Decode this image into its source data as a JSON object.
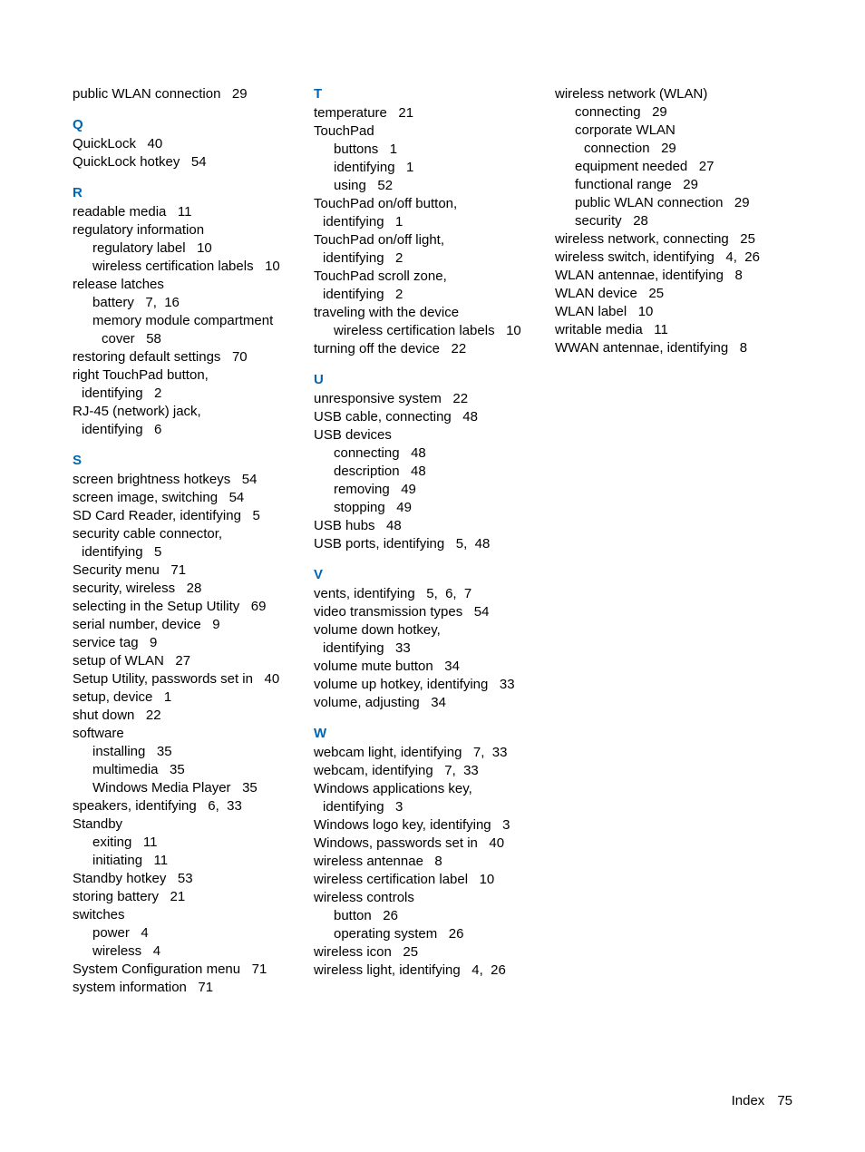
{
  "accent_color": "#0066b3",
  "text_color": "#000000",
  "font_size_pt": 11,
  "col1": {
    "pre": [
      {
        "t": "entry",
        "text": "public WLAN connection",
        "pg": "29"
      }
    ],
    "Q": [
      {
        "t": "entry",
        "text": "QuickLock",
        "pg": "40"
      },
      {
        "t": "entry",
        "text": "QuickLock hotkey",
        "pg": "54"
      }
    ],
    "R": [
      {
        "t": "entry",
        "text": "readable media",
        "pg": "11"
      },
      {
        "t": "entry",
        "text": "regulatory information",
        "pg": ""
      },
      {
        "t": "sub",
        "text": "regulatory label",
        "pg": "10"
      },
      {
        "t": "sub",
        "text": "wireless certification labels",
        "pg": "10"
      },
      {
        "t": "entry",
        "text": "release latches",
        "pg": ""
      },
      {
        "t": "sub",
        "text": "battery",
        "pg": "7,  16"
      },
      {
        "t": "sub",
        "text": "memory module compartment",
        "pg": ""
      },
      {
        "t": "sub2",
        "text": "cover",
        "pg": "58"
      },
      {
        "t": "entry",
        "text": "restoring default settings",
        "pg": "70"
      },
      {
        "t": "entry",
        "text": "right TouchPad button,",
        "pg": ""
      },
      {
        "t": "cont",
        "text": "identifying",
        "pg": "2"
      },
      {
        "t": "entry",
        "text": "RJ-45 (network) jack,",
        "pg": ""
      },
      {
        "t": "cont",
        "text": "identifying",
        "pg": "6"
      }
    ],
    "S": [
      {
        "t": "entry",
        "text": "screen brightness hotkeys",
        "pg": "54"
      },
      {
        "t": "entry",
        "text": "screen image, switching",
        "pg": "54"
      },
      {
        "t": "entry",
        "text": "SD Card Reader, identifying",
        "pg": "5"
      },
      {
        "t": "entry",
        "text": "security cable connector,",
        "pg": ""
      },
      {
        "t": "cont",
        "text": "identifying",
        "pg": "5"
      },
      {
        "t": "entry",
        "text": "Security menu",
        "pg": "71"
      },
      {
        "t": "entry",
        "text": "security, wireless",
        "pg": "28"
      },
      {
        "t": "entry",
        "text": "selecting in the Setup Utility",
        "pg": "69"
      },
      {
        "t": "entry",
        "text": "serial number, device",
        "pg": "9"
      },
      {
        "t": "entry",
        "text": "service tag",
        "pg": "9"
      },
      {
        "t": "entry",
        "text": "setup of WLAN",
        "pg": "27"
      },
      {
        "t": "entry",
        "text": "Setup Utility, passwords set in",
        "pg": "40"
      },
      {
        "t": "entry",
        "text": "setup, device",
        "pg": "1"
      },
      {
        "t": "entry",
        "text": "shut down",
        "pg": "22"
      },
      {
        "t": "entry",
        "text": "software",
        "pg": ""
      },
      {
        "t": "sub",
        "text": "installing",
        "pg": "35"
      },
      {
        "t": "sub",
        "text": "multimedia",
        "pg": "35"
      },
      {
        "t": "sub",
        "text": "Windows Media Player",
        "pg": "35"
      },
      {
        "t": "entry",
        "text": "speakers, identifying",
        "pg": "6,  33"
      },
      {
        "t": "entry",
        "text": "Standby",
        "pg": ""
      },
      {
        "t": "sub",
        "text": "exiting",
        "pg": "11"
      },
      {
        "t": "sub",
        "text": "initiating",
        "pg": "11"
      },
      {
        "t": "entry",
        "text": "Standby hotkey",
        "pg": "53"
      },
      {
        "t": "entry",
        "text": "storing battery",
        "pg": "21"
      },
      {
        "t": "entry",
        "text": "switches",
        "pg": ""
      },
      {
        "t": "sub",
        "text": "power",
        "pg": "4"
      },
      {
        "t": "sub",
        "text": "wireless",
        "pg": "4"
      },
      {
        "t": "entry",
        "text": "System Configuration menu",
        "pg": "71"
      },
      {
        "t": "entry",
        "text": "system information",
        "pg": "71"
      }
    ]
  },
  "col2": {
    "T": [
      {
        "t": "entry",
        "text": "temperature",
        "pg": "21"
      },
      {
        "t": "entry",
        "text": "TouchPad",
        "pg": ""
      },
      {
        "t": "sub",
        "text": "buttons",
        "pg": "1"
      },
      {
        "t": "sub",
        "text": "identifying",
        "pg": "1"
      },
      {
        "t": "sub",
        "text": "using",
        "pg": "52"
      },
      {
        "t": "entry",
        "text": "TouchPad on/off button,",
        "pg": ""
      },
      {
        "t": "cont",
        "text": "identifying",
        "pg": "1"
      },
      {
        "t": "entry",
        "text": "TouchPad on/off light,",
        "pg": ""
      },
      {
        "t": "cont",
        "text": "identifying",
        "pg": "2"
      },
      {
        "t": "entry",
        "text": "TouchPad scroll zone,",
        "pg": ""
      },
      {
        "t": "cont",
        "text": "identifying",
        "pg": "2"
      },
      {
        "t": "entry",
        "text": "traveling with the device",
        "pg": ""
      },
      {
        "t": "sub",
        "text": "wireless certification labels",
        "pg": "10"
      },
      {
        "t": "entry",
        "text": "turning off the device",
        "pg": "22"
      }
    ],
    "U": [
      {
        "t": "entry",
        "text": "unresponsive system",
        "pg": "22"
      },
      {
        "t": "entry",
        "text": "USB cable, connecting",
        "pg": "48"
      },
      {
        "t": "entry",
        "text": "USB devices",
        "pg": ""
      },
      {
        "t": "sub",
        "text": "connecting",
        "pg": "48"
      },
      {
        "t": "sub",
        "text": "description",
        "pg": "48"
      },
      {
        "t": "sub",
        "text": "removing",
        "pg": "49"
      },
      {
        "t": "sub",
        "text": "stopping",
        "pg": "49"
      },
      {
        "t": "entry",
        "text": "USB hubs",
        "pg": "48"
      },
      {
        "t": "entry",
        "text": "USB ports, identifying",
        "pg": "5,  48"
      }
    ],
    "V": [
      {
        "t": "entry",
        "text": "vents, identifying",
        "pg": "5,  6,  7"
      },
      {
        "t": "entry",
        "text": "video transmission types",
        "pg": "54"
      },
      {
        "t": "entry",
        "text": "volume down hotkey,",
        "pg": ""
      },
      {
        "t": "cont",
        "text": "identifying",
        "pg": "33"
      },
      {
        "t": "entry",
        "text": "volume mute button",
        "pg": "34"
      },
      {
        "t": "entry",
        "text": "volume up hotkey, identifying",
        "pg": "33"
      },
      {
        "t": "entry",
        "text": "volume, adjusting",
        "pg": "34"
      }
    ],
    "W": [
      {
        "t": "entry",
        "text": "webcam light, identifying",
        "pg": "7,  33"
      },
      {
        "t": "entry",
        "text": "webcam, identifying",
        "pg": "7,  33"
      },
      {
        "t": "entry",
        "text": "Windows applications key,",
        "pg": ""
      },
      {
        "t": "cont",
        "text": "identifying",
        "pg": "3"
      },
      {
        "t": "entry",
        "text": "Windows logo key, identifying",
        "pg": "3"
      },
      {
        "t": "entry",
        "text": "Windows, passwords set in",
        "pg": "40"
      },
      {
        "t": "entry",
        "text": "wireless antennae",
        "pg": "8"
      },
      {
        "t": "entry",
        "text": "wireless certification label",
        "pg": "10"
      },
      {
        "t": "entry",
        "text": "wireless controls",
        "pg": ""
      },
      {
        "t": "sub",
        "text": "button",
        "pg": "26"
      },
      {
        "t": "sub",
        "text": "operating system",
        "pg": "26"
      },
      {
        "t": "entry",
        "text": "wireless icon",
        "pg": "25"
      },
      {
        "t": "entry",
        "text": "wireless light, identifying",
        "pg": "4,  26"
      }
    ]
  },
  "col3": {
    "pre": [
      {
        "t": "entry",
        "text": "wireless network (WLAN)",
        "pg": ""
      },
      {
        "t": "sub",
        "text": "connecting",
        "pg": "29"
      },
      {
        "t": "sub",
        "text": "corporate WLAN",
        "pg": ""
      },
      {
        "t": "sub2",
        "text": "connection",
        "pg": "29"
      },
      {
        "t": "sub",
        "text": "equipment needed",
        "pg": "27"
      },
      {
        "t": "sub",
        "text": "functional range",
        "pg": "29"
      },
      {
        "t": "sub",
        "text": "public WLAN connection",
        "pg": "29"
      },
      {
        "t": "sub",
        "text": "security",
        "pg": "28"
      },
      {
        "t": "entry",
        "text": "wireless network, connecting",
        "pg": "25"
      },
      {
        "t": "entry",
        "text": "wireless switch, identifying",
        "pg": "4,  26"
      },
      {
        "t": "entry",
        "text": "WLAN antennae, identifying",
        "pg": "8"
      },
      {
        "t": "entry",
        "text": "WLAN device",
        "pg": "25"
      },
      {
        "t": "entry",
        "text": "WLAN label",
        "pg": "10"
      },
      {
        "t": "entry",
        "text": "writable media",
        "pg": "11"
      },
      {
        "t": "entry",
        "text": "WWAN antennae, identifying",
        "pg": "8"
      }
    ]
  },
  "footer": {
    "label": "Index",
    "page": "75"
  }
}
